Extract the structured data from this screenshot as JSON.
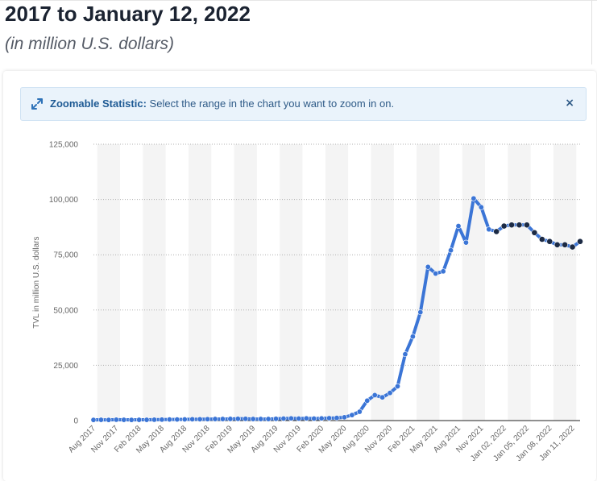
{
  "header": {
    "title": "2017 to January 12, 2022",
    "subtitle": "(in million U.S. dollars)"
  },
  "banner": {
    "label": "Zoomable Statistic:",
    "text": "Select the range in the chart you want to zoom in on.",
    "close_symbol": "×",
    "icon": "expand-arrows-icon"
  },
  "colors": {
    "line": "#3b75d6",
    "marker_monthly": "#3b75d6",
    "marker_daily": "#1c2a44",
    "band": "#f4f4f4"
  },
  "chart_data": {
    "type": "line",
    "title": "",
    "xlabel": "",
    "ylabel": "TVL in million U.S. dollars",
    "ylim": [
      0,
      125000
    ],
    "yticks": [
      "0",
      "25,000",
      "50,000",
      "75,000",
      "100,000",
      "125,000"
    ],
    "grid": true,
    "legend": "none",
    "series": [
      {
        "values": [
          300,
          350,
          300,
          400,
          350,
          300,
          350,
          350,
          400,
          450,
          500,
          500,
          550,
          600,
          600,
          650,
          700,
          700,
          750,
          800,
          800,
          700,
          700,
          700,
          800,
          900,
          1000,
          900,
          1000,
          900,
          1000,
          1100,
          1200,
          1500,
          2500,
          4000,
          9000,
          11500,
          10500,
          12500,
          15500,
          30000,
          38000,
          49000,
          69500,
          66500,
          67500,
          77000,
          88000,
          80500,
          100500,
          96500,
          86500,
          85500,
          88000,
          88500,
          88500,
          88500,
          85000,
          82000,
          81000,
          79500,
          79500,
          78500,
          81000
        ]
      }
    ],
    "x": [
      "Aug 2017",
      "Sep 2017",
      "Oct 2017",
      "Nov 2017",
      "Dec 2017",
      "Jan 2018",
      "Feb 2018",
      "Mar 2018",
      "Apr 2018",
      "May 2018",
      "Jun 2018",
      "Jul 2018",
      "Aug 2018",
      "Sep 2018",
      "Oct 2018",
      "Nov 2018",
      "Dec 2018",
      "Jan 2019",
      "Feb 2019",
      "Mar 2019",
      "Apr 2019",
      "May 2019",
      "Jun 2019",
      "Jul 2019",
      "Aug 2019",
      "Sep 2019",
      "Oct 2019",
      "Nov 2019",
      "Dec 2019",
      "Jan 2020",
      "Feb 2020",
      "Mar 2020",
      "Apr 2020",
      "May 2020",
      "Jun 2020",
      "Jul 2020",
      "Aug 2020",
      "Sep 2020",
      "Oct 2020",
      "Nov 2020",
      "Dec 2020",
      "Jan 2021",
      "Feb 2021",
      "Mar 2021",
      "Apr 2021",
      "May 2021",
      "Jun 2021",
      "Jul 2021",
      "Aug 2021",
      "Sep 2021",
      "Oct 2021",
      "Nov 2021",
      "Dec 2021",
      "Jan 01, 2022",
      "Jan 02, 2022",
      "Jan 03, 2022",
      "Jan 04, 2022",
      "Jan 05, 2022",
      "Jan 06, 2022",
      "Jan 07, 2022",
      "Jan 08, 2022",
      "Jan 09, 2022",
      "Jan 10, 2022",
      "Jan 11, 2022",
      "Jan 12, 2022"
    ],
    "xtick_labels": [
      {
        "i": 0,
        "label": "Aug 2017"
      },
      {
        "i": 3,
        "label": "Nov 2017"
      },
      {
        "i": 6,
        "label": "Feb 2018"
      },
      {
        "i": 9,
        "label": "May 2018"
      },
      {
        "i": 12,
        "label": "Aug 2018"
      },
      {
        "i": 15,
        "label": "Nov 2018"
      },
      {
        "i": 18,
        "label": "Feb 2019"
      },
      {
        "i": 21,
        "label": "May 2019"
      },
      {
        "i": 24,
        "label": "Aug 2019"
      },
      {
        "i": 27,
        "label": "Nov 2019"
      },
      {
        "i": 30,
        "label": "Feb 2020"
      },
      {
        "i": 33,
        "label": "May 2020"
      },
      {
        "i": 36,
        "label": "Aug 2020"
      },
      {
        "i": 39,
        "label": "Nov 2020"
      },
      {
        "i": 42,
        "label": "Feb 2021"
      },
      {
        "i": 45,
        "label": "May 2021"
      },
      {
        "i": 48,
        "label": "Aug 2021"
      },
      {
        "i": 51,
        "label": "Nov 2021"
      },
      {
        "i": 54,
        "label": "Jan 02, 2022"
      },
      {
        "i": 57,
        "label": "Jan 05, 2022"
      },
      {
        "i": 60,
        "label": "Jan 08, 2022"
      },
      {
        "i": 63,
        "label": "Jan 11, 2022"
      }
    ],
    "daily_start_index": 53
  }
}
